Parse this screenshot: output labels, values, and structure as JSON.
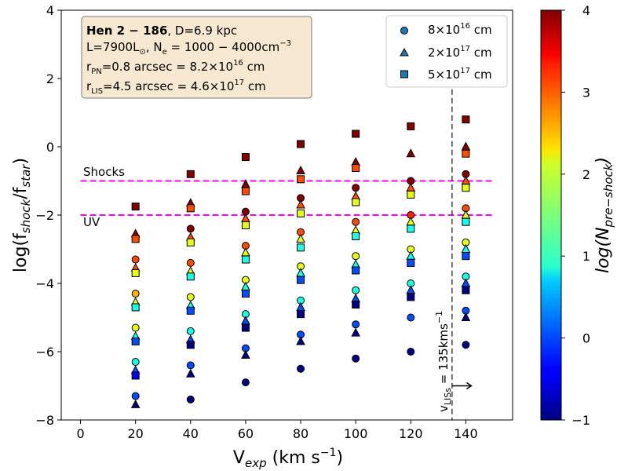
{
  "chart_data": {
    "type": "scatter",
    "xlabel": "V",
    "xlabel_sub": "exp",
    "xlabel_unit": " (km s",
    "xlabel_unit_sup": "−1",
    "xlabel_close": ")",
    "ylabel": "log(f",
    "ylabel_sub1": "shock",
    "ylabel_mid": "/f",
    "ylabel_sub2": "star",
    "ylabel_close": ")",
    "xlim": [
      -7,
      157
    ],
    "ylim": [
      -8,
      4
    ],
    "xticks": [
      0,
      20,
      40,
      60,
      80,
      100,
      120,
      140
    ],
    "yticks": [
      -8,
      -6,
      -4,
      -2,
      0,
      2,
      4
    ],
    "colorbar": {
      "label": "log(N",
      "label_sub": "pre−shock",
      "label_close": ")",
      "range": [
        -1,
        4
      ],
      "ticks": [
        -1,
        0,
        1,
        2,
        3,
        4
      ],
      "colormap": "jet"
    },
    "hlines": [
      {
        "y": -1,
        "label": "Shocks",
        "color": "#ff00ff"
      },
      {
        "y": -2,
        "label": "UV",
        "color": "#ff00ff"
      }
    ],
    "vline": {
      "x": 135,
      "label": "v",
      "label_sub": "LISs",
      "label_rest": " = 135kms",
      "label_sup": "−1",
      "color": "#444444"
    },
    "arrow": {
      "from": 135,
      "to": 142,
      "y": -7.0
    },
    "info_box": {
      "line1_bold": "Hen 2 − 186",
      "line1_rest": ",     D=6.9 kpc",
      "line2": "L=7900L",
      "line2_sun": "⊙",
      "line2_ne": ", N",
      "line2_ne_sub": "e",
      "line2_ne_val": " = 1000 − 4000cm",
      "line2_sup": "−3",
      "line3_a": "r",
      "line3_sub": "PN",
      "line3_b": "=0.8 arcsec  = 8.2×10",
      "line3_sup": "16",
      "line3_c": " cm",
      "line4_a": "r",
      "line4_sub": "LIS",
      "line4_b": "=4.5 arcsec = 4.6×10",
      "line4_sup": "17",
      "line4_c": " cm"
    },
    "legend": [
      {
        "marker": "circle",
        "label": "8×10",
        "sup": "16",
        "unit": " cm"
      },
      {
        "marker": "triangle",
        "label": "2×10",
        "sup": "17",
        "unit": " cm"
      },
      {
        "marker": "square",
        "label": "5×10",
        "sup": "17",
        "unit": " cm"
      }
    ],
    "series": [
      {
        "name": "8×10^16 cm",
        "marker": "circle",
        "offset": 0,
        "points": [
          {
            "x": 20,
            "y": -3.3,
            "c": 3
          },
          {
            "x": 20,
            "y": -4.3,
            "c": 2.5
          },
          {
            "x": 20,
            "y": -5.3,
            "c": 2
          },
          {
            "x": 20,
            "y": -6.3,
            "c": 1
          },
          {
            "x": 20,
            "y": -7.3,
            "c": 0
          },
          {
            "x": 40,
            "y": -2.4,
            "c": 4
          },
          {
            "x": 40,
            "y": -3.4,
            "c": 3
          },
          {
            "x": 40,
            "y": -4.4,
            "c": 2
          },
          {
            "x": 40,
            "y": -5.4,
            "c": 1
          },
          {
            "x": 40,
            "y": -6.4,
            "c": 0
          },
          {
            "x": 40,
            "y": -7.4,
            "c": -1
          },
          {
            "x": 60,
            "y": -1.9,
            "c": 4
          },
          {
            "x": 60,
            "y": -2.9,
            "c": 3
          },
          {
            "x": 60,
            "y": -3.9,
            "c": 2
          },
          {
            "x": 60,
            "y": -4.9,
            "c": 1
          },
          {
            "x": 60,
            "y": -5.9,
            "c": 0
          },
          {
            "x": 60,
            "y": -6.9,
            "c": -1
          },
          {
            "x": 80,
            "y": -1.5,
            "c": 4
          },
          {
            "x": 80,
            "y": -2.5,
            "c": 3
          },
          {
            "x": 80,
            "y": -3.5,
            "c": 2
          },
          {
            "x": 80,
            "y": -4.5,
            "c": 1
          },
          {
            "x": 80,
            "y": -5.5,
            "c": 0
          },
          {
            "x": 80,
            "y": -6.5,
            "c": -1
          },
          {
            "x": 100,
            "y": -1.2,
            "c": 4
          },
          {
            "x": 100,
            "y": -2.2,
            "c": 3
          },
          {
            "x": 100,
            "y": -3.2,
            "c": 2
          },
          {
            "x": 100,
            "y": -4.2,
            "c": 1
          },
          {
            "x": 100,
            "y": -5.2,
            "c": 0
          },
          {
            "x": 100,
            "y": -6.2,
            "c": -1
          },
          {
            "x": 120,
            "y": -1.0,
            "c": 4
          },
          {
            "x": 120,
            "y": -2.0,
            "c": 3.2
          },
          {
            "x": 120,
            "y": -3.0,
            "c": 2
          },
          {
            "x": 120,
            "y": -4.0,
            "c": 1
          },
          {
            "x": 120,
            "y": -5.0,
            "c": 0
          },
          {
            "x": 120,
            "y": -6.0,
            "c": -1
          },
          {
            "x": 140,
            "y": -0.8,
            "c": 4
          },
          {
            "x": 140,
            "y": -1.8,
            "c": 3
          },
          {
            "x": 140,
            "y": -2.8,
            "c": 2
          },
          {
            "x": 140,
            "y": -3.8,
            "c": 1
          },
          {
            "x": 140,
            "y": -4.8,
            "c": 0
          },
          {
            "x": 140,
            "y": -5.8,
            "c": -1
          }
        ]
      },
      {
        "name": "2×10^17 cm",
        "marker": "triangle",
        "offset": 0,
        "points": [
          {
            "x": 20,
            "y": -2.55,
            "c": 4
          },
          {
            "x": 20,
            "y": -3.55,
            "c": 3
          },
          {
            "x": 20,
            "y": -4.55,
            "c": 2
          },
          {
            "x": 20,
            "y": -5.55,
            "c": 1
          },
          {
            "x": 20,
            "y": -6.55,
            "c": 0
          },
          {
            "x": 20,
            "y": -7.55,
            "c": -1
          },
          {
            "x": 40,
            "y": -1.65,
            "c": 4
          },
          {
            "x": 40,
            "y": -2.65,
            "c": 3
          },
          {
            "x": 40,
            "y": -3.65,
            "c": 2
          },
          {
            "x": 40,
            "y": -4.65,
            "c": 1
          },
          {
            "x": 40,
            "y": -5.65,
            "c": 0
          },
          {
            "x": 40,
            "y": -6.65,
            "c": -1
          },
          {
            "x": 60,
            "y": -1.1,
            "c": 4
          },
          {
            "x": 60,
            "y": -2.1,
            "c": 3
          },
          {
            "x": 60,
            "y": -3.1,
            "c": 2
          },
          {
            "x": 60,
            "y": -4.1,
            "c": 1
          },
          {
            "x": 60,
            "y": -5.1,
            "c": 0
          },
          {
            "x": 60,
            "y": -6.1,
            "c": -1
          },
          {
            "x": 80,
            "y": -0.7,
            "c": 4
          },
          {
            "x": 80,
            "y": -1.7,
            "c": 3
          },
          {
            "x": 80,
            "y": -2.7,
            "c": 2
          },
          {
            "x": 80,
            "y": -3.7,
            "c": 1
          },
          {
            "x": 80,
            "y": -4.7,
            "c": 0
          },
          {
            "x": 80,
            "y": -5.7,
            "c": -1
          },
          {
            "x": 100,
            "y": -0.45,
            "c": 4
          },
          {
            "x": 100,
            "y": -1.45,
            "c": 3
          },
          {
            "x": 100,
            "y": -2.45,
            "c": 2
          },
          {
            "x": 100,
            "y": -3.45,
            "c": 1
          },
          {
            "x": 100,
            "y": -4.45,
            "c": 0
          },
          {
            "x": 100,
            "y": -5.45,
            "c": -1
          },
          {
            "x": 120,
            "y": -0.2,
            "c": 4
          },
          {
            "x": 120,
            "y": -1.2,
            "c": 3
          },
          {
            "x": 120,
            "y": -2.2,
            "c": 2
          },
          {
            "x": 120,
            "y": -3.2,
            "c": 1
          },
          {
            "x": 120,
            "y": -4.2,
            "c": 0
          },
          {
            "x": 140,
            "y": 0.0,
            "c": 4
          },
          {
            "x": 140,
            "y": -1.0,
            "c": 3
          },
          {
            "x": 140,
            "y": -2.0,
            "c": 2
          },
          {
            "x": 140,
            "y": -3.0,
            "c": 1
          },
          {
            "x": 140,
            "y": -4.0,
            "c": 0
          },
          {
            "x": 140,
            "y": -5.0,
            "c": -1
          }
        ]
      },
      {
        "name": "5×10^17 cm",
        "marker": "square",
        "offset": 0,
        "points": [
          {
            "x": 20,
            "y": -1.75,
            "c": 4
          },
          {
            "x": 20,
            "y": -2.7,
            "c": 3
          },
          {
            "x": 20,
            "y": -3.7,
            "c": 2
          },
          {
            "x": 20,
            "y": -4.7,
            "c": 1
          },
          {
            "x": 20,
            "y": -5.7,
            "c": 0
          },
          {
            "x": 20,
            "y": -6.7,
            "c": -0.5
          },
          {
            "x": 40,
            "y": -0.8,
            "c": 4
          },
          {
            "x": 40,
            "y": -1.8,
            "c": 3
          },
          {
            "x": 40,
            "y": -2.8,
            "c": 2
          },
          {
            "x": 40,
            "y": -3.8,
            "c": 1
          },
          {
            "x": 40,
            "y": -4.8,
            "c": 0
          },
          {
            "x": 40,
            "y": -5.8,
            "c": -1
          },
          {
            "x": 60,
            "y": -0.3,
            "c": 4
          },
          {
            "x": 60,
            "y": -1.3,
            "c": 3
          },
          {
            "x": 60,
            "y": -2.3,
            "c": 2
          },
          {
            "x": 60,
            "y": -3.3,
            "c": 1
          },
          {
            "x": 60,
            "y": -4.3,
            "c": 0
          },
          {
            "x": 60,
            "y": -5.3,
            "c": -1
          },
          {
            "x": 80,
            "y": 0.08,
            "c": 4
          },
          {
            "x": 80,
            "y": -0.95,
            "c": 3
          },
          {
            "x": 80,
            "y": -1.95,
            "c": 2
          },
          {
            "x": 80,
            "y": -2.95,
            "c": 1
          },
          {
            "x": 80,
            "y": -3.9,
            "c": 0
          },
          {
            "x": 80,
            "y": -4.9,
            "c": -1
          },
          {
            "x": 100,
            "y": 0.38,
            "c": 4
          },
          {
            "x": 100,
            "y": -0.62,
            "c": 3
          },
          {
            "x": 100,
            "y": -1.62,
            "c": 2
          },
          {
            "x": 100,
            "y": -2.62,
            "c": 1
          },
          {
            "x": 100,
            "y": -3.62,
            "c": 0
          },
          {
            "x": 100,
            "y": -4.62,
            "c": -1
          },
          {
            "x": 120,
            "y": 0.6,
            "c": 4
          },
          {
            "x": 120,
            "y": -1.4,
            "c": 2
          },
          {
            "x": 120,
            "y": -2.4,
            "c": 1
          },
          {
            "x": 120,
            "y": -3.4,
            "c": 0
          },
          {
            "x": 120,
            "y": -4.4,
            "c": -1
          },
          {
            "x": 140,
            "y": 0.8,
            "c": 4
          },
          {
            "x": 140,
            "y": -0.2,
            "c": 3
          },
          {
            "x": 140,
            "y": -1.2,
            "c": 2
          },
          {
            "x": 140,
            "y": -2.2,
            "c": 1
          },
          {
            "x": 140,
            "y": -3.2,
            "c": 0
          },
          {
            "x": 140,
            "y": -4.2,
            "c": -1
          }
        ]
      }
    ]
  }
}
